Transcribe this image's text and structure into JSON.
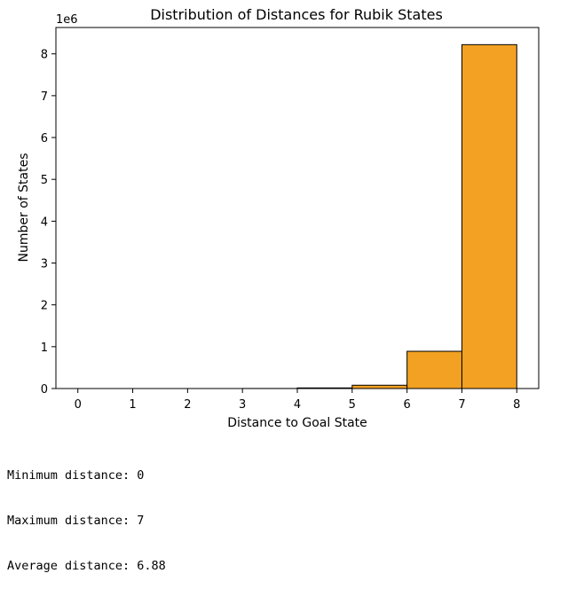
{
  "chart_data": {
    "type": "bar",
    "title": "Distribution of Distances for Rubik States",
    "xlabel": "Distance to Goal State",
    "ylabel": "Number of States",
    "y_scale_label": "1e6",
    "x_ticks": [
      "0",
      "1",
      "2",
      "3",
      "4",
      "5",
      "6",
      "7",
      "8"
    ],
    "y_ticks": [
      "0",
      "1",
      "2",
      "3",
      "4",
      "5",
      "6",
      "7",
      "8"
    ],
    "xlim": [
      -0.4,
      8.4
    ],
    "ylim": [
      0,
      8.63
    ],
    "bins": [
      {
        "x0": 0,
        "x1": 1,
        "value": 1e-07
      },
      {
        "x0": 1,
        "x1": 2,
        "value": 6e-06
      },
      {
        "x0": 2,
        "x1": 3,
        "value": 0.00012
      },
      {
        "x0": 3,
        "x1": 4,
        "value": 0.0015
      },
      {
        "x0": 4,
        "x1": 5,
        "value": 0.015
      },
      {
        "x0": 5,
        "x1": 6,
        "value": 0.079
      },
      {
        "x0": 6,
        "x1": 7,
        "value": 0.89
      },
      {
        "x0": 7,
        "x1": 8,
        "value": 8.22
      }
    ],
    "value_unit": "millions of states",
    "bar_color": "#f2a122",
    "edge_color": "#000000",
    "grid": false
  },
  "output": {
    "min_line": "Minimum distance: 0",
    "max_line": "Maximum distance: 7",
    "avg_line": "Average distance: 6.88"
  }
}
